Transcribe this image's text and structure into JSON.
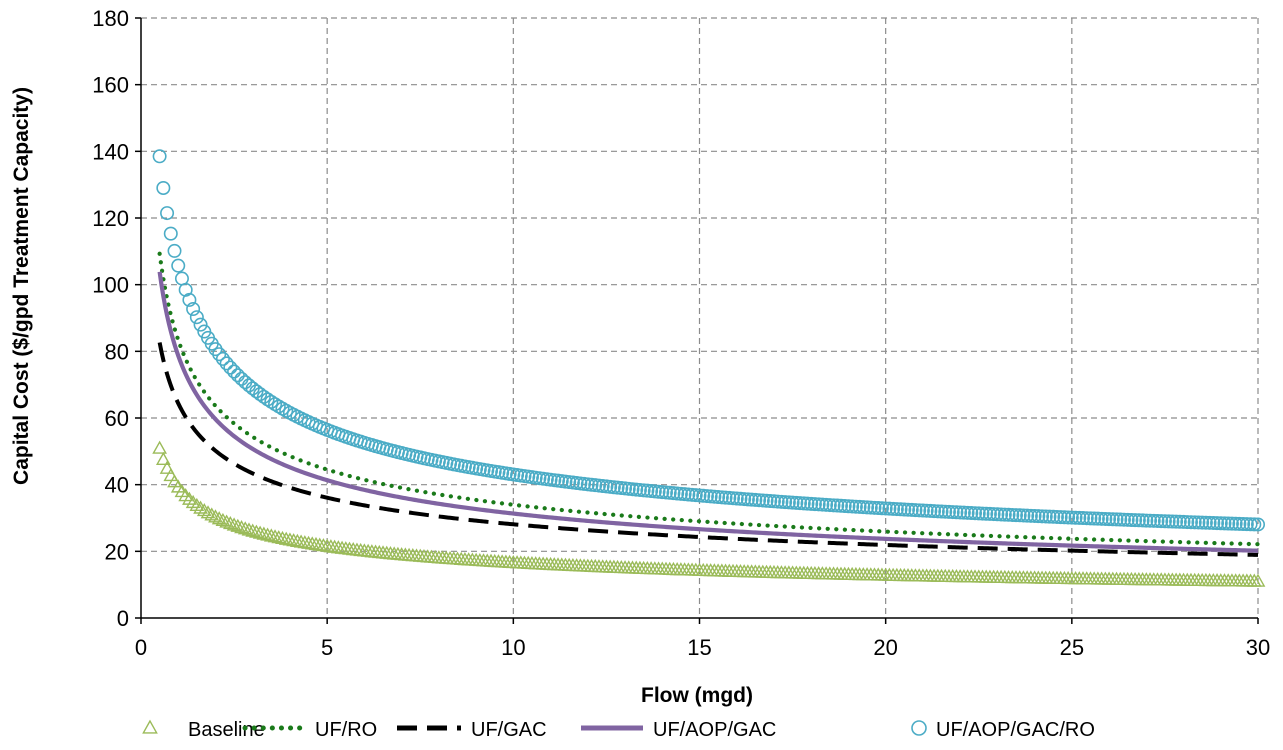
{
  "chart_data": {
    "type": "scatter",
    "title": "",
    "xlabel": "Flow (mgd)",
    "ylabel": "Capital Cost ($/gpd Treatment Capacity)",
    "xlim": [
      0,
      30
    ],
    "ylim": [
      0,
      180
    ],
    "x_ticks": [
      0,
      5,
      10,
      15,
      20,
      25,
      30
    ],
    "y_ticks": [
      0,
      20,
      40,
      60,
      80,
      100,
      120,
      140,
      160,
      180
    ],
    "grid": true,
    "legend_position": "bottom",
    "series": [
      {
        "name": "Baseline",
        "style": "marker-triangle",
        "color": "#9bbb59",
        "model": {
          "a": 39.2,
          "b": -0.375
        },
        "points": [
          [
            0.5,
            56
          ],
          [
            1,
            40
          ],
          [
            2,
            30
          ],
          [
            5,
            22
          ],
          [
            10,
            16.5
          ],
          [
            15,
            14
          ],
          [
            20,
            12.5
          ],
          [
            25,
            11.5
          ],
          [
            30,
            10.5
          ]
        ]
      },
      {
        "name": "UF/RO",
        "style": "dotted-line",
        "color": "#1a7a1a",
        "model": {
          "a": 83.4,
          "b": -0.39
        },
        "points": [
          [
            0.5,
            114
          ],
          [
            1,
            82
          ],
          [
            2,
            63
          ],
          [
            5,
            45
          ],
          [
            10,
            34
          ],
          [
            15,
            29
          ],
          [
            20,
            26
          ],
          [
            25,
            24
          ],
          [
            30,
            22
          ]
        ]
      },
      {
        "name": "UF/GAC",
        "style": "dashed-line",
        "color": "#000000",
        "model": {
          "a": 64.4,
          "b": -0.36
        },
        "points": [
          [
            0.5,
            93
          ],
          [
            1,
            64
          ],
          [
            2,
            50
          ],
          [
            5,
            37
          ],
          [
            10,
            29
          ],
          [
            15,
            25
          ],
          [
            20,
            22.5
          ],
          [
            25,
            20.5
          ],
          [
            30,
            19
          ]
        ]
      },
      {
        "name": "UF/AOP/GAC",
        "style": "solid-line",
        "color": "#8064a2",
        "model": {
          "a": 78.7,
          "b": -0.4
        },
        "points": [
          [
            0.5,
            107
          ],
          [
            1,
            79
          ],
          [
            2,
            58
          ],
          [
            5,
            42
          ],
          [
            10,
            31
          ],
          [
            15,
            26.5
          ],
          [
            20,
            24
          ],
          [
            25,
            22
          ],
          [
            30,
            21
          ]
        ]
      },
      {
        "name": "UF/AOP/GAC/RO",
        "style": "marker-circle",
        "color": "#4bacc6",
        "model": {
          "a": 105.7,
          "b": -0.39
        },
        "points": [
          [
            0.5,
            146
          ],
          [
            1,
            106
          ],
          [
            2,
            80
          ],
          [
            5,
            60
          ],
          [
            10,
            45
          ],
          [
            15,
            38
          ],
          [
            20,
            34
          ],
          [
            25,
            31
          ],
          [
            30,
            28.5
          ]
        ]
      }
    ]
  }
}
